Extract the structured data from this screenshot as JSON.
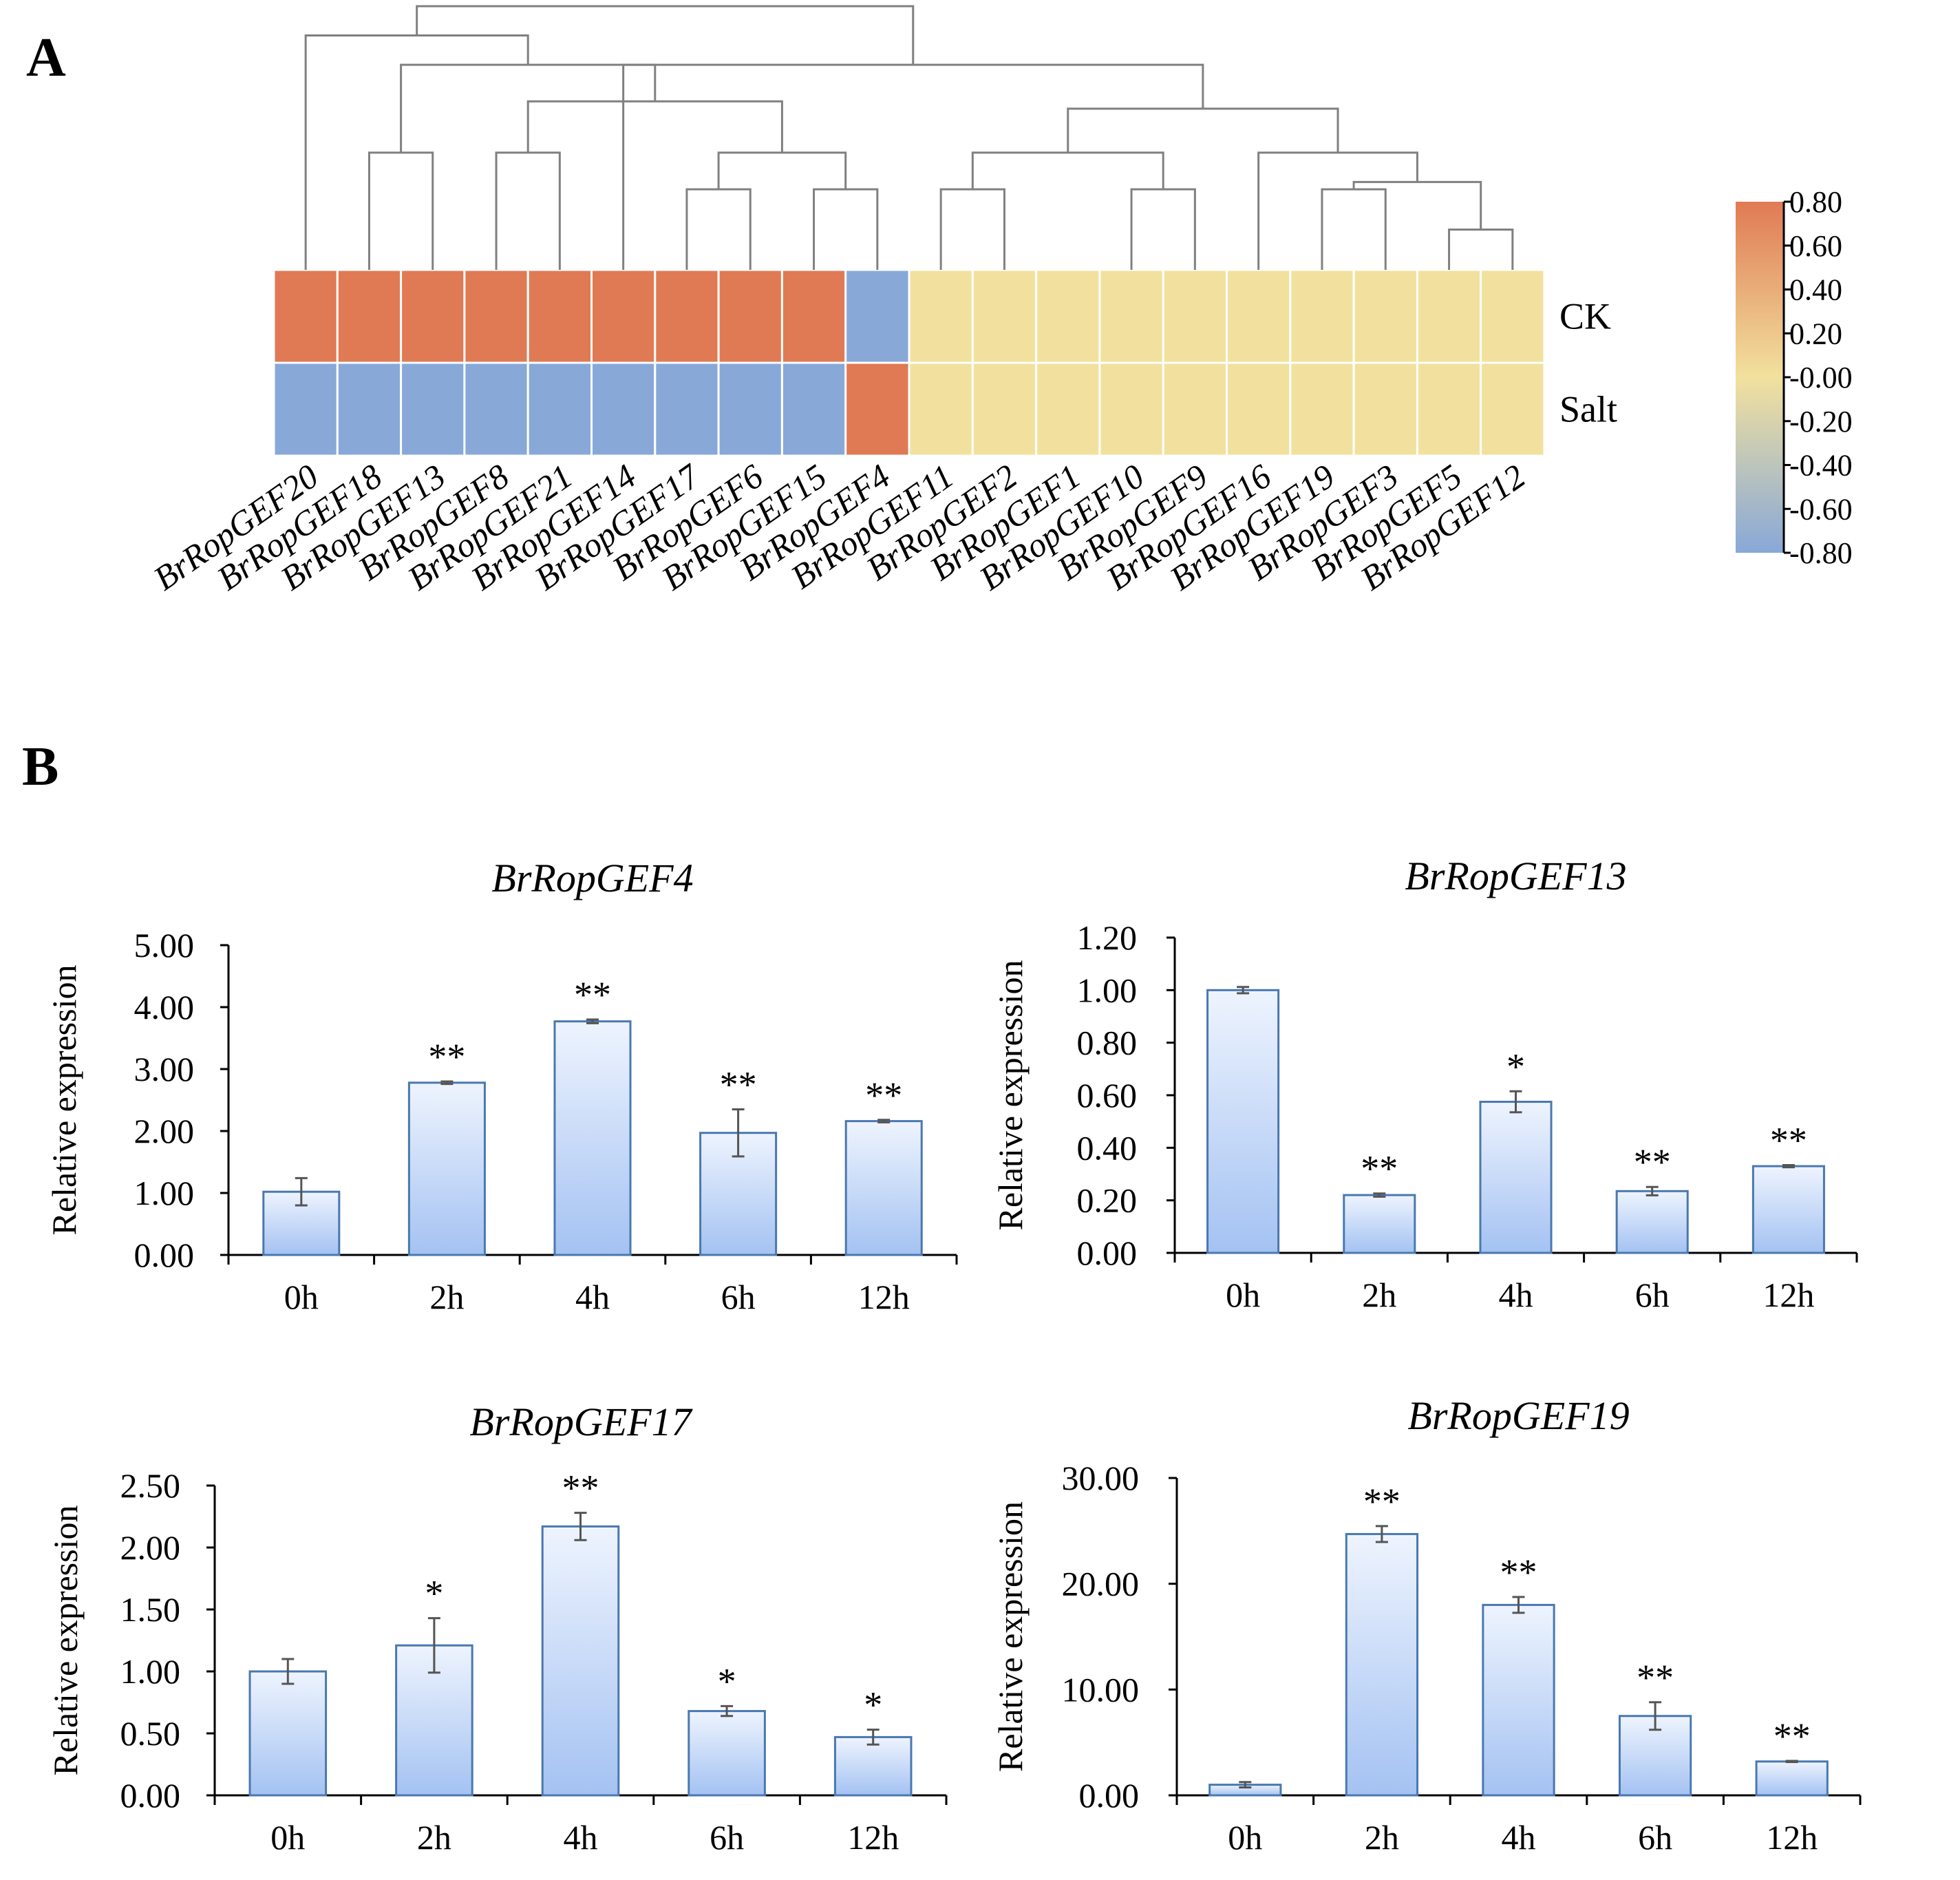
{
  "panel_labels": {
    "a": "A",
    "b": "B"
  },
  "colors": {
    "high": "#e07a54",
    "mid": "#f2e19e",
    "low": "#88a8d8",
    "bar_top": "#eef4fe",
    "bar_bottom": "#a4c2f2",
    "bar_stroke": "#4a78b0",
    "tree": "#808080"
  },
  "chart_data": [
    {
      "type": "heatmap",
      "title": "",
      "rows": [
        "CK",
        "Salt"
      ],
      "columns": [
        "BrRopGEF20",
        "BrRopGEF18",
        "BrRopGEF13",
        "BrRopGEF8",
        "BrRopGEF21",
        "BrRopGEF14",
        "BrRopGEF17",
        "BrRopGEF6",
        "BrRopGEF15",
        "BrRopGEF4",
        "BrRopGEF11",
        "BrRopGEF2",
        "BrRopGEF1",
        "BrRopGEF10",
        "BrRopGEF9",
        "BrRopGEF16",
        "BrRopGEF19",
        "BrRopGEF3",
        "BrRopGEF5",
        "BrRopGEF12"
      ],
      "values": [
        [
          0.8,
          0.8,
          0.8,
          0.8,
          0.8,
          0.8,
          0.8,
          0.8,
          0.8,
          -0.8,
          0,
          0,
          0,
          0,
          0,
          0,
          0,
          0,
          0,
          0
        ],
        [
          -0.8,
          -0.8,
          -0.8,
          -0.8,
          -0.8,
          -0.8,
          -0.8,
          -0.8,
          -0.8,
          0.8,
          0,
          0,
          0,
          0,
          0,
          0,
          0,
          0,
          0,
          0
        ]
      ],
      "color_scale": {
        "min": -0.8,
        "max": 0.8,
        "tick_labels": [
          "0.80",
          "0.60",
          "0.40",
          "0.20",
          "-0.00",
          "-0.20",
          "-0.40",
          "-0.60",
          "-0.80"
        ]
      },
      "dendrogram": "column clustering tree"
    },
    {
      "type": "bar",
      "title": "BrRopGEF4",
      "categories": [
        "0h",
        "2h",
        "4h",
        "6h",
        "12h"
      ],
      "values": [
        1.02,
        2.78,
        3.77,
        1.97,
        2.16
      ],
      "errors": [
        0.22,
        0.02,
        0.03,
        0.38,
        0.02
      ],
      "significance": [
        "",
        "**",
        "**",
        "**",
        "**"
      ],
      "xlabel": "",
      "ylabel": "Relative expression",
      "ylim": [
        0,
        5
      ],
      "yticks": [
        "0.00",
        "1.00",
        "2.00",
        "3.00",
        "4.00",
        "5.00"
      ]
    },
    {
      "type": "bar",
      "title": "BrRopGEF13",
      "categories": [
        "0h",
        "2h",
        "4h",
        "6h",
        "12h"
      ],
      "values": [
        1.0,
        0.22,
        0.575,
        0.235,
        0.33
      ],
      "errors": [
        0.012,
        0.006,
        0.04,
        0.016,
        0.004
      ],
      "significance": [
        "",
        "**",
        "*",
        "**",
        "**"
      ],
      "xlabel": "",
      "ylabel": "Relative expression",
      "ylim": [
        0,
        1.2
      ],
      "yticks": [
        "0.00",
        "0.20",
        "0.40",
        "0.60",
        "0.80",
        "1.00",
        "1.20"
      ]
    },
    {
      "type": "bar",
      "title": "BrRopGEF17",
      "categories": [
        "0h",
        "2h",
        "4h",
        "6h",
        "12h"
      ],
      "values": [
        1.0,
        1.21,
        2.17,
        0.68,
        0.47
      ],
      "errors": [
        0.1,
        0.22,
        0.11,
        0.04,
        0.06
      ],
      "significance": [
        "",
        "*",
        "**",
        "*",
        "*"
      ],
      "xlabel": "",
      "ylabel": "Relative expression",
      "ylim": [
        0,
        2.5
      ],
      "yticks": [
        "0.00",
        "0.50",
        "1.00",
        "1.50",
        "2.00",
        "2.50"
      ]
    },
    {
      "type": "bar",
      "title": "BrRopGEF19",
      "categories": [
        "0h",
        "2h",
        "4h",
        "6h",
        "12h"
      ],
      "values": [
        1.0,
        24.7,
        18.0,
        7.5,
        3.2
      ],
      "errors": [
        0.25,
        0.75,
        0.75,
        1.3,
        0.05
      ],
      "significance": [
        "",
        "**",
        "**",
        "**",
        "**"
      ],
      "xlabel": "",
      "ylabel": "Relative expression",
      "ylim": [
        0,
        30
      ],
      "yticks": [
        "0.00",
        "10.00",
        "20.00",
        "30.00"
      ]
    }
  ]
}
